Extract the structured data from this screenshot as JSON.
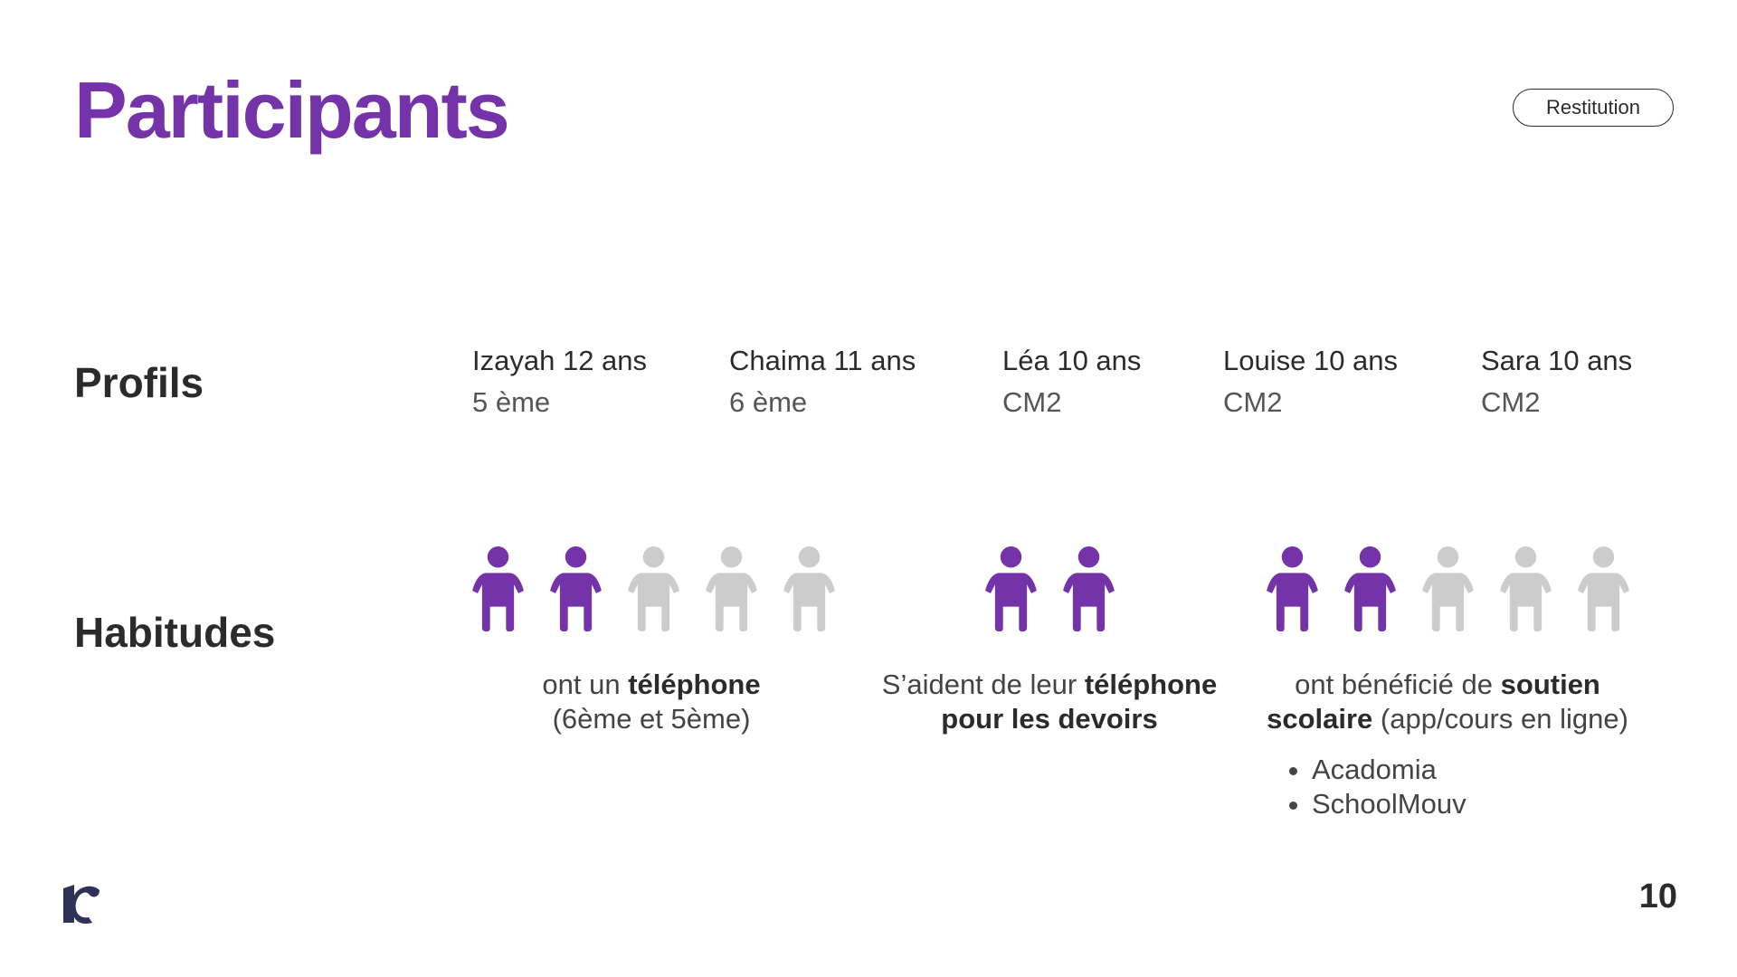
{
  "header": {
    "title": "Participants",
    "tag": "Restitution"
  },
  "sections": {
    "profiles_label": "Profils",
    "habits_label": "Habitudes"
  },
  "profiles": [
    {
      "name": "Izayah 12 ans",
      "grade": "5 ème"
    },
    {
      "name": "Chaima 11 ans",
      "grade": "6 ème"
    },
    {
      "name": "Léa 10 ans",
      "grade": "CM2"
    },
    {
      "name": "Louise 10 ans",
      "grade": "CM2"
    },
    {
      "name": "Sara 10 ans",
      "grade": "CM2"
    }
  ],
  "habits": [
    {
      "highlighted": 2,
      "total": 5,
      "pre": "ont un ",
      "bold": "téléphone",
      "post": "",
      "line2_bold": "",
      "line2": "(6ème et 5ème)"
    },
    {
      "highlighted": 2,
      "total": 2,
      "pre": "S’aident de leur ",
      "bold": "téléphone",
      "post": "",
      "line2_bold": "pour les devoirs",
      "line2": ""
    },
    {
      "highlighted": 2,
      "total": 5,
      "pre": "ont bénéficié de ",
      "bold": "soutien",
      "post": "",
      "line2_bold": "scolaire",
      "line2": " (app/cours en ligne)",
      "bullets": [
        "Acadomia",
        "SchoolMouv"
      ]
    }
  ],
  "colors": {
    "accent": "#7433a8",
    "inactive": "#cccccc",
    "text": "#2b2b2b"
  },
  "icons": {
    "person": "person-icon",
    "logo": "brand-logo-icon"
  },
  "footer": {
    "page_number": "10"
  }
}
